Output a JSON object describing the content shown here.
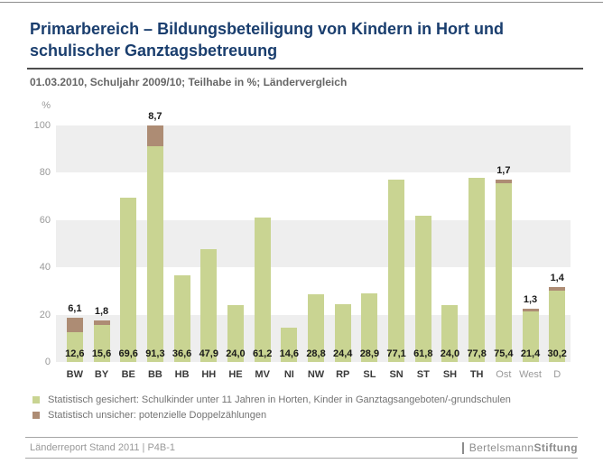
{
  "header": {
    "title": "Primarbereich – Bildungsbeteiligung von Kindern in Hort und schulischer Ganztagsbetreuung",
    "subtitle": "01.03.2010, Schuljahr 2009/10; Teilhabe in %; Ländervergleich"
  },
  "chart_data": {
    "type": "bar",
    "stacked": true,
    "title": "Primarbereich – Bildungsbeteiligung von Kindern in Hort und schulischer Ganztagsbetreuung",
    "xlabel": "",
    "ylabel": "%",
    "ylim": [
      0,
      100
    ],
    "yticks": [
      0,
      20,
      40,
      60,
      80,
      100
    ],
    "grid_bands": "alternating gray stripes every 20 units (0-20, 40-60, 80-100)",
    "legend_position": "bottom-left",
    "categories": [
      "BW",
      "BY",
      "BE",
      "BB",
      "HB",
      "HH",
      "HE",
      "MV",
      "NI",
      "NW",
      "RP",
      "SL",
      "SN",
      "ST",
      "SH",
      "TH",
      "Ost",
      "West",
      "D"
    ],
    "muted_categories": [
      "Ost",
      "West",
      "D"
    ],
    "series": [
      {
        "name": "Statistisch gesichert: Schulkinder unter 11 Jahren in Horten, Kinder in Ganztagsangeboten/-grundschulen",
        "color": "#c9d492",
        "values": [
          "12,6",
          "15,6",
          "69,6",
          "91,3",
          "36,6",
          "47,9",
          "24,0",
          "61,2",
          "14,6",
          "28,8",
          "24,4",
          "28,9",
          "77,1",
          "61,8",
          "24,0",
          "77,8",
          "75,4",
          "21,4",
          "30,2"
        ]
      },
      {
        "name": "Statistisch unsicher: potenzielle Doppelzählungen",
        "color": "#ad8c74",
        "values": [
          "6,1",
          "1,8",
          null,
          "8,7",
          null,
          null,
          null,
          null,
          null,
          null,
          null,
          null,
          null,
          null,
          null,
          null,
          "1,7",
          "1,3",
          "1,4"
        ]
      }
    ]
  },
  "footer": {
    "left": "Länderreport Stand 2011 | P4B-1",
    "brand_regular": "Bertelsmann",
    "brand_bold": "Stiftung"
  }
}
